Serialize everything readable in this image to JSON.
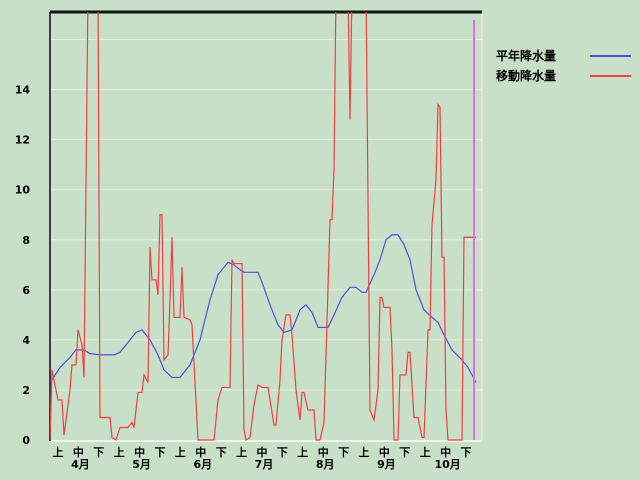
{
  "chart_data": {
    "type": "line",
    "title": "",
    "xlabel": "",
    "ylabel": "",
    "ylim": [
      0,
      17.1
    ],
    "yticks": [
      0,
      2,
      4,
      6,
      8,
      10,
      12,
      14
    ],
    "grid": true,
    "legend_position": "top-right",
    "x_range": [
      "4/1",
      "10/31"
    ],
    "x_tick_labels": [
      {
        "dekad": "上",
        "month": ""
      },
      {
        "dekad": "中",
        "month": "4月"
      },
      {
        "dekad": "下",
        "month": ""
      },
      {
        "dekad": "上",
        "month": ""
      },
      {
        "dekad": "中",
        "month": "5月"
      },
      {
        "dekad": "下",
        "month": ""
      },
      {
        "dekad": "上",
        "month": ""
      },
      {
        "dekad": "中",
        "month": "6月"
      },
      {
        "dekad": "下",
        "month": ""
      },
      {
        "dekad": "上",
        "month": ""
      },
      {
        "dekad": "中",
        "month": "7月"
      },
      {
        "dekad": "下",
        "month": ""
      },
      {
        "dekad": "上",
        "month": ""
      },
      {
        "dekad": "中",
        "month": "8月"
      },
      {
        "dekad": "下",
        "month": ""
      },
      {
        "dekad": "上",
        "month": ""
      },
      {
        "dekad": "中",
        "month": "9月"
      },
      {
        "dekad": "下",
        "month": ""
      },
      {
        "dekad": "上",
        "month": ""
      },
      {
        "dekad": "中",
        "month": "10月"
      },
      {
        "dekad": "下",
        "month": ""
      }
    ],
    "marker_date": "10/30",
    "marker_color": "#e070e0",
    "series": [
      {
        "name": "平年降水量",
        "color": "#5050e0",
        "points": [
          [
            "4/2",
            2.4
          ],
          [
            "4/6",
            2.9
          ],
          [
            "4/11",
            3.3
          ],
          [
            "4/14",
            3.6
          ],
          [
            "4/18",
            3.6
          ],
          [
            "4/21",
            3.45
          ],
          [
            "4/26",
            3.4
          ],
          [
            "5/3",
            3.4
          ],
          [
            "5/6",
            3.5
          ],
          [
            "5/11",
            4.0
          ],
          [
            "5/14",
            4.3
          ],
          [
            "5/17",
            4.4
          ],
          [
            "5/21",
            4.0
          ],
          [
            "5/25",
            3.4
          ],
          [
            "5/28",
            2.8
          ],
          [
            "6/1",
            2.5
          ],
          [
            "6/5",
            2.5
          ],
          [
            "6/10",
            3.0
          ],
          [
            "6/15",
            4.0
          ],
          [
            "6/20",
            5.6
          ],
          [
            "6/24",
            6.6
          ],
          [
            "6/29",
            7.1
          ],
          [
            "7/2",
            7.0
          ],
          [
            "7/5",
            6.8
          ],
          [
            "7/7",
            6.7
          ],
          [
            "7/14",
            6.7
          ],
          [
            "7/16",
            6.3
          ],
          [
            "7/20",
            5.4
          ],
          [
            "7/24",
            4.6
          ],
          [
            "7/27",
            4.3
          ],
          [
            "7/31",
            4.4
          ],
          [
            "8/4",
            5.2
          ],
          [
            "8/7",
            5.4
          ],
          [
            "8/10",
            5.1
          ],
          [
            "8/13",
            4.5
          ],
          [
            "8/18",
            4.5
          ],
          [
            "8/21",
            5.0
          ],
          [
            "8/25",
            5.7
          ],
          [
            "8/29",
            6.1
          ],
          [
            "9/1",
            6.1
          ],
          [
            "9/4",
            5.9
          ],
          [
            "9/6",
            5.9
          ],
          [
            "9/10",
            6.6
          ],
          [
            "9/13",
            7.2
          ],
          [
            "9/16",
            8.0
          ],
          [
            "9/19",
            8.2
          ],
          [
            "9/22",
            8.2
          ],
          [
            "9/25",
            7.8
          ],
          [
            "9/28",
            7.2
          ],
          [
            "10/1",
            6.0
          ],
          [
            "10/5",
            5.2
          ],
          [
            "10/9",
            4.9
          ],
          [
            "10/12",
            4.7
          ],
          [
            "10/15",
            4.2
          ],
          [
            "10/19",
            3.6
          ],
          [
            "10/24",
            3.2
          ],
          [
            "10/27",
            2.9
          ],
          [
            "10/31",
            2.3
          ]
        ]
      },
      {
        "name": "移動降水量",
        "color": "#f04040",
        "points": [
          [
            "4/1",
            0
          ],
          [
            "4/2",
            2.8
          ],
          [
            "4/3",
            2.4
          ],
          [
            "4/5",
            1.6
          ],
          [
            "4/7",
            1.6
          ],
          [
            "4/8",
            0.2
          ],
          [
            "4/9",
            0.8
          ],
          [
            "4/11",
            2.0
          ],
          [
            "4/12",
            3.0
          ],
          [
            "4/14",
            3.0
          ],
          [
            "4/15",
            4.4
          ],
          [
            "4/17",
            3.8
          ],
          [
            "4/18",
            2.5
          ],
          [
            "4/20",
            18
          ],
          [
            "4/25",
            18
          ],
          [
            "4/26",
            0.9
          ],
          [
            "5/1",
            0.9
          ],
          [
            "5/2",
            0.1
          ],
          [
            "5/4",
            0
          ],
          [
            "5/6",
            0.5
          ],
          [
            "5/10",
            0.5
          ],
          [
            "5/12",
            0.7
          ],
          [
            "5/13",
            0.5
          ],
          [
            "5/15",
            1.9
          ],
          [
            "5/17",
            1.9
          ],
          [
            "5/18",
            2.6
          ],
          [
            "5/20",
            2.3
          ],
          [
            "5/21",
            7.7
          ],
          [
            "5/22",
            6.4
          ],
          [
            "5/24",
            6.4
          ],
          [
            "5/25",
            5.8
          ],
          [
            "5/26",
            9.0
          ],
          [
            "5/27",
            9.0
          ],
          [
            "5/28",
            3.2
          ],
          [
            "5/30",
            3.4
          ],
          [
            "5/31",
            5.6
          ],
          [
            "6/1",
            8.1
          ],
          [
            "6/2",
            4.9
          ],
          [
            "6/5",
            4.9
          ],
          [
            "6/6",
            6.9
          ],
          [
            "6/7",
            4.9
          ],
          [
            "6/10",
            4.8
          ],
          [
            "6/11",
            4.6
          ],
          [
            "6/14",
            0
          ],
          [
            "6/22",
            0
          ],
          [
            "6/24",
            1.6
          ],
          [
            "6/26",
            2.1
          ],
          [
            "6/30",
            2.1
          ],
          [
            "7/1",
            7.2
          ],
          [
            "7/2",
            7.05
          ],
          [
            "7/6",
            7.05
          ],
          [
            "7/7",
            0.4
          ],
          [
            "7/8",
            0
          ],
          [
            "7/10",
            0.1
          ],
          [
            "7/12",
            1.4
          ],
          [
            "7/14",
            2.2
          ],
          [
            "7/16",
            2.1
          ],
          [
            "7/19",
            2.1
          ],
          [
            "7/20",
            1.6
          ],
          [
            "7/22",
            0.6
          ],
          [
            "7/23",
            0.6
          ],
          [
            "7/25",
            2.4
          ],
          [
            "7/26",
            4.0
          ],
          [
            "7/28",
            5.0
          ],
          [
            "7/30",
            5.0
          ],
          [
            "7/31",
            4.2
          ],
          [
            "8/2",
            2.0
          ],
          [
            "8/4",
            0.8
          ],
          [
            "8/5",
            1.9
          ],
          [
            "8/6",
            1.9
          ],
          [
            "8/8",
            1.2
          ],
          [
            "8/11",
            1.2
          ],
          [
            "8/12",
            0
          ],
          [
            "8/14",
            0
          ],
          [
            "8/16",
            0.7
          ],
          [
            "8/19",
            8.8
          ],
          [
            "8/20",
            8.8
          ],
          [
            "8/21",
            10.8
          ],
          [
            "8/22",
            18
          ],
          [
            "8/28",
            18
          ],
          [
            "8/29",
            12.8
          ],
          [
            "8/30",
            18
          ],
          [
            "9/6",
            18
          ],
          [
            "9/8",
            1.2
          ],
          [
            "9/10",
            0.8
          ],
          [
            "9/12",
            2.0
          ],
          [
            "9/13",
            5.7
          ],
          [
            "9/14",
            5.7
          ],
          [
            "9/15",
            5.3
          ],
          [
            "9/18",
            5.3
          ],
          [
            "9/19",
            3.6
          ],
          [
            "9/20",
            0
          ],
          [
            "9/22",
            0
          ],
          [
            "9/23",
            2.6
          ],
          [
            "9/26",
            2.6
          ],
          [
            "9/27",
            3.5
          ],
          [
            "9/28",
            3.5
          ],
          [
            "9/30",
            0.9
          ],
          [
            "10/2",
            0.9
          ],
          [
            "10/4",
            0.1
          ],
          [
            "10/5",
            0.1
          ],
          [
            "10/7",
            4.4
          ],
          [
            "10/8",
            4.4
          ],
          [
            "10/9",
            8.6
          ],
          [
            "10/11",
            10.4
          ],
          [
            "10/12",
            13.4
          ],
          [
            "10/13",
            13.3
          ],
          [
            "10/14",
            7.3
          ],
          [
            "10/15",
            7.3
          ],
          [
            "10/16",
            1.2
          ],
          [
            "10/17",
            0
          ],
          [
            "10/24",
            0
          ],
          [
            "10/25",
            8.1
          ],
          [
            "10/31",
            8.1
          ]
        ]
      }
    ]
  }
}
